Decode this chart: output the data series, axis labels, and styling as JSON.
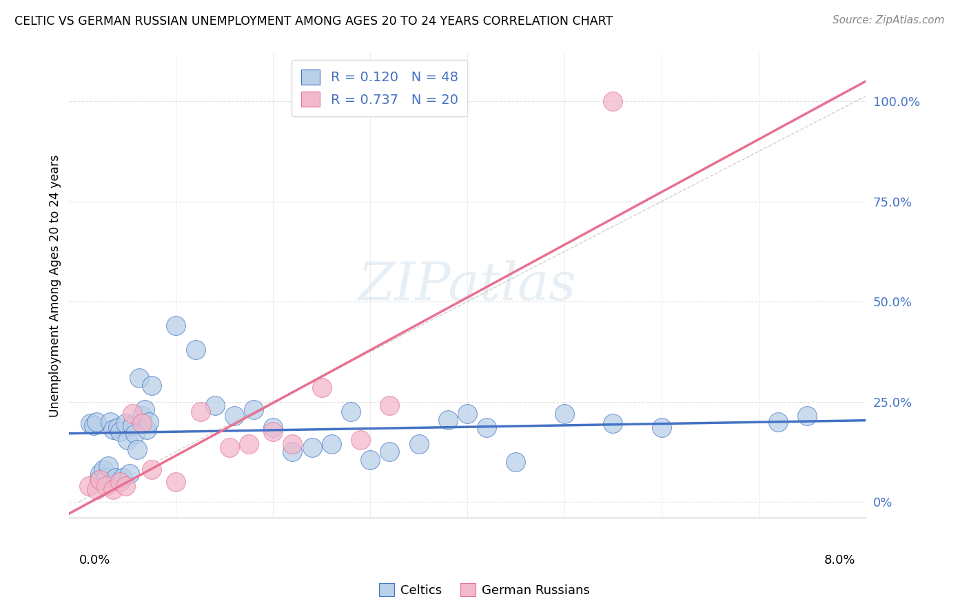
{
  "title": "CELTIC VS GERMAN RUSSIAN UNEMPLOYMENT AMONG AGES 20 TO 24 YEARS CORRELATION CHART",
  "source": "Source: ZipAtlas.com",
  "ylabel": "Unemployment Among Ages 20 to 24 years",
  "watermark": "ZIPatlas",
  "celtics_R": "0.120",
  "celtics_N": "48",
  "german_R": "0.737",
  "german_N": "20",
  "celtics_fill": "#b8d0e8",
  "celtics_edge": "#4472c4",
  "german_fill": "#f2b8cc",
  "german_edge": "#e87090",
  "ref_line_color": "#c8c8c8",
  "grid_color": "#e0e0e0",
  "right_label_color": "#4472c4",
  "bg_color": "#ffffff",
  "celtics_x": [
    0.0012,
    0.0015,
    0.0018,
    0.002,
    0.0022,
    0.0025,
    0.0028,
    0.003,
    0.0032,
    0.0035,
    0.0038,
    0.004,
    0.0042,
    0.0045,
    0.0048,
    0.005,
    0.0052,
    0.0055,
    0.0058,
    0.006,
    0.0062,
    0.0065,
    0.0068,
    0.007,
    0.0072,
    0.0075,
    0.01,
    0.012,
    0.014,
    0.016,
    0.018,
    0.02,
    0.022,
    0.024,
    0.026,
    0.028,
    0.03,
    0.032,
    0.035,
    0.038,
    0.04,
    0.042,
    0.045,
    0.05,
    0.055,
    0.06,
    0.072,
    0.075
  ],
  "celtics_y": [
    0.195,
    0.19,
    0.2,
    0.055,
    0.07,
    0.08,
    0.06,
    0.09,
    0.2,
    0.18,
    0.06,
    0.185,
    0.175,
    0.06,
    0.195,
    0.155,
    0.07,
    0.19,
    0.17,
    0.13,
    0.31,
    0.215,
    0.23,
    0.18,
    0.2,
    0.29,
    0.44,
    0.38,
    0.24,
    0.215,
    0.23,
    0.185,
    0.125,
    0.135,
    0.145,
    0.225,
    0.105,
    0.125,
    0.145,
    0.205,
    0.22,
    0.185,
    0.1,
    0.22,
    0.195,
    0.185,
    0.2,
    0.215
  ],
  "german_x": [
    0.001,
    0.0018,
    0.0022,
    0.0028,
    0.0035,
    0.0042,
    0.0048,
    0.0055,
    0.0065,
    0.0075,
    0.01,
    0.0125,
    0.0155,
    0.0175,
    0.02,
    0.022,
    0.025,
    0.029,
    0.032,
    0.055
  ],
  "german_y": [
    0.04,
    0.03,
    0.055,
    0.04,
    0.03,
    0.05,
    0.04,
    0.22,
    0.195,
    0.08,
    0.05,
    0.225,
    0.135,
    0.145,
    0.175,
    0.145,
    0.285,
    0.155,
    0.24,
    1.0
  ],
  "xlim": [
    0.0,
    0.08
  ],
  "ylim": [
    -0.04,
    1.12
  ],
  "ytick_vals": [
    0.0,
    0.25,
    0.5,
    0.75,
    1.0
  ],
  "ytick_labels": [
    "0%",
    "25.0%",
    "50.0%",
    "75.0%",
    "100.0%"
  ],
  "xtick_minor": [
    0.01,
    0.02,
    0.03,
    0.04,
    0.05,
    0.06,
    0.07
  ]
}
